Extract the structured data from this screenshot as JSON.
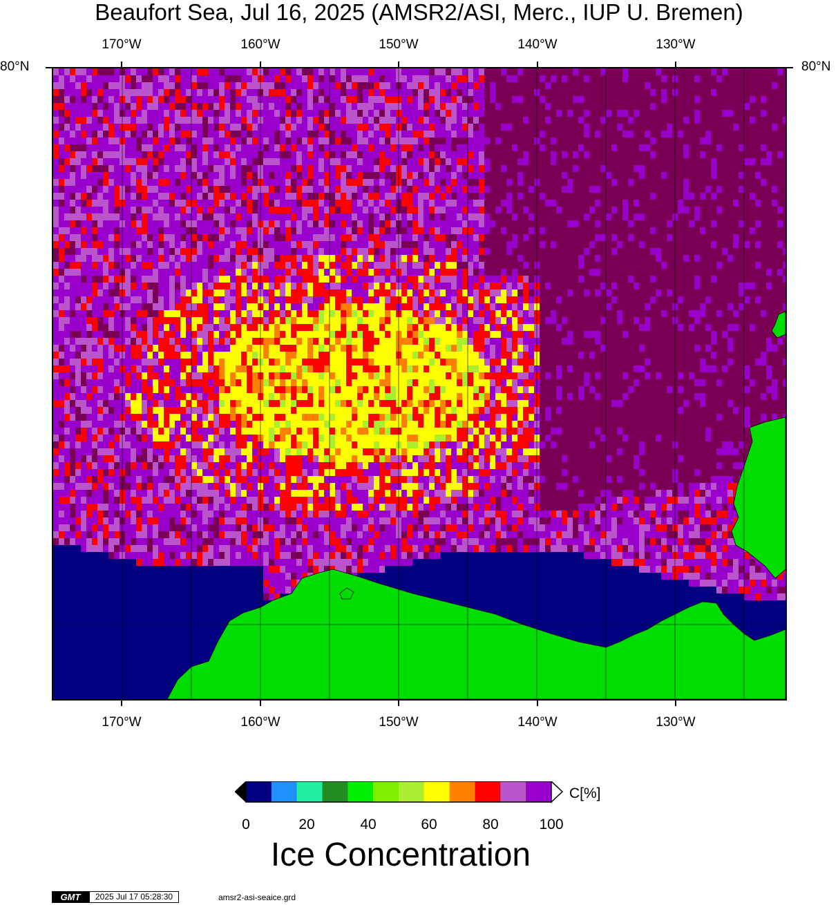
{
  "title": "Beaufort Sea, Jul 16, 2025 (AMSR2/ASI, Merc., IUP U. Bremen)",
  "map": {
    "lon_labels": [
      "170°W",
      "160°W",
      "150°W",
      "140°W",
      "130°W"
    ],
    "lat_label_top": "80°N",
    "colors": {
      "land": "#00dd00",
      "open_water": "#000080",
      "ice_high": "#7a0055"
    }
  },
  "colorbar": {
    "title": "Ice Concentration",
    "unit": "C[%]",
    "tick_labels": [
      "0",
      "20",
      "40",
      "60",
      "80",
      "100"
    ],
    "colors": [
      "#000080",
      "#1e90ff",
      "#22f0a0",
      "#228b22",
      "#00ee00",
      "#7fee00",
      "#aaee30",
      "#ffff00",
      "#ff8000",
      "#ff0000",
      "#bb55cc",
      "#9900cc"
    ],
    "range": [
      0,
      100
    ]
  },
  "footer": {
    "logo": "GMT",
    "timestamp": "2025 Jul 17 05:28:30",
    "grid_file": "amsr2-asi-seaice.grd"
  }
}
